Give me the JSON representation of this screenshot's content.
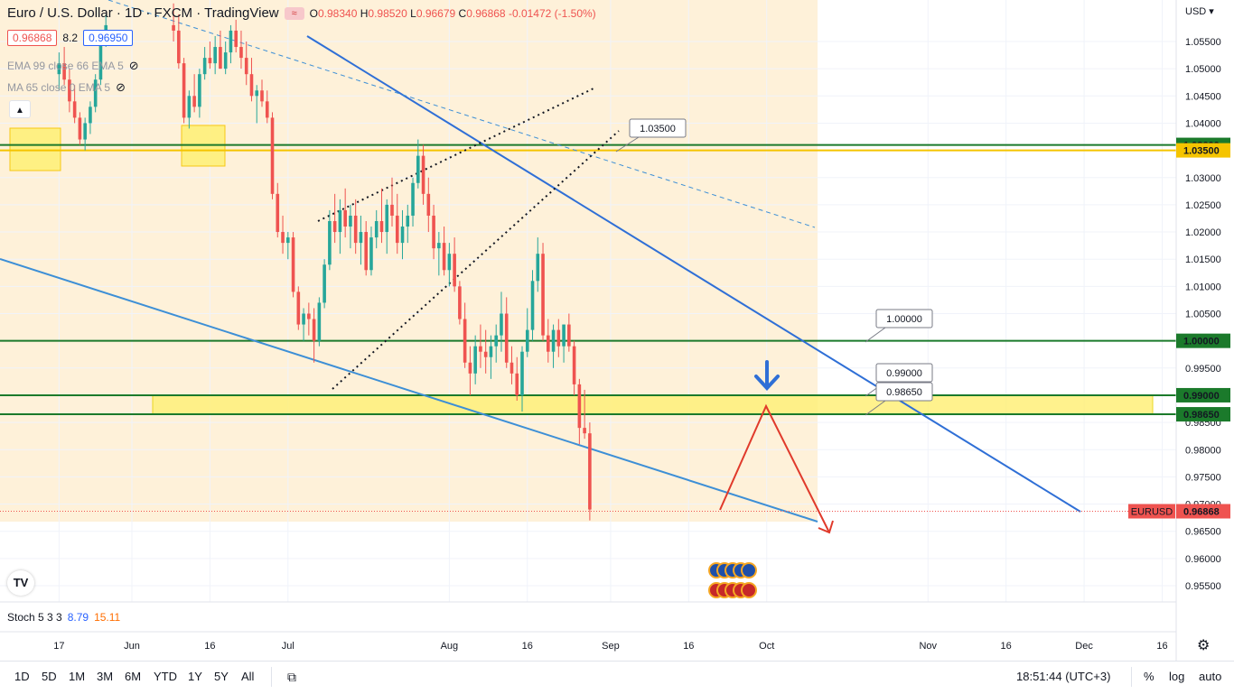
{
  "header": {
    "symbol_title": "Euro / U.S. Dollar · 1D · FXCM · TradingView",
    "ohlc": {
      "o_label": "O",
      "o": "0.98340",
      "h_label": "H",
      "h": "0.98520",
      "l_label": "L",
      "l": "0.96679",
      "c_label": "C",
      "c": "0.96868",
      "change": "-0.01472 (-1.50%)"
    },
    "bid": "0.96868",
    "spread": "8.2",
    "ask": "0.96950",
    "indicator1": "EMA 99 close 66 EMA 5",
    "indicator2": "MA 65 close 0 EMA 5",
    "collapse_icon": "chevron-up-icon",
    "eye_icon": "eye-off-icon"
  },
  "price_axis": {
    "currency": "USD",
    "ticks": [
      "1.05500",
      "1.05000",
      "1.04500",
      "1.04000",
      "1.03500",
      "1.03000",
      "1.02500",
      "1.02000",
      "1.01500",
      "1.01000",
      "1.00500",
      "1.00000",
      "0.99500",
      "0.99000",
      "0.98500",
      "0.98000",
      "0.97500",
      "0.97000",
      "0.96500",
      "0.96000",
      "0.95500"
    ],
    "tick_values": [
      1.055,
      1.05,
      1.045,
      1.04,
      1.035,
      1.03,
      1.025,
      1.02,
      1.015,
      1.01,
      1.005,
      1.0,
      0.995,
      0.99,
      0.985,
      0.98,
      0.975,
      0.97,
      0.965,
      0.96,
      0.955
    ],
    "badges": [
      {
        "label": "1.03600",
        "value": 1.036,
        "color": "#1b7a2b"
      },
      {
        "label": "1.03500",
        "value": 1.035,
        "color": "#f5c400"
      },
      {
        "label": "1.00000",
        "value": 1.0,
        "color": "#1b7a2b"
      },
      {
        "label": "0.99000",
        "value": 0.99,
        "color": "#1b7a2b"
      },
      {
        "label": "0.98650",
        "value": 0.9865,
        "color": "#1b7a2b"
      }
    ],
    "last_price_tag": "EURUSD",
    "last_price": "0.96868",
    "last_price_value": 0.96868
  },
  "time_axis": {
    "labels": [
      "17",
      "Jun",
      "16",
      "Jul",
      "Aug",
      "16",
      "Sep",
      "16",
      "Oct",
      "Nov",
      "16",
      "Dec",
      "16"
    ],
    "label_days": [
      -14,
      0,
      15,
      30,
      61,
      76,
      92,
      107,
      122,
      153,
      168,
      183,
      198
    ],
    "settings_icon": "gear-icon"
  },
  "chart_data": {
    "type": "candlestick",
    "title": "Euro / U.S. Dollar · 1D · FXCM",
    "x_unit": "days since Jun 1",
    "candles_note": "daily OHLC, approximate",
    "candles": [
      [
        -14,
        1.049,
        1.053,
        1.046,
        1.051
      ],
      [
        -13,
        1.051,
        1.054,
        1.047,
        1.048
      ],
      [
        -12,
        1.048,
        1.05,
        1.042,
        1.044
      ],
      [
        -11,
        1.044,
        1.047,
        1.04,
        1.041
      ],
      [
        -10,
        1.041,
        1.042,
        1.036,
        1.037
      ],
      [
        -9,
        1.037,
        1.041,
        1.035,
        1.04
      ],
      [
        -8,
        1.04,
        1.044,
        1.038,
        1.043
      ],
      [
        -7,
        1.043,
        1.049,
        1.042,
        1.048
      ],
      [
        -6,
        1.048,
        1.057,
        1.047,
        1.056
      ],
      [
        -5,
        1.056,
        1.06,
        1.054,
        1.058
      ],
      [
        8,
        1.058,
        1.062,
        1.055,
        1.057
      ],
      [
        9,
        1.057,
        1.06,
        1.05,
        1.051
      ],
      [
        10,
        1.051,
        1.052,
        1.04,
        1.041
      ],
      [
        11,
        1.041,
        1.046,
        1.039,
        1.045
      ],
      [
        12,
        1.045,
        1.049,
        1.042,
        1.043
      ],
      [
        13,
        1.043,
        1.05,
        1.041,
        1.049
      ],
      [
        14,
        1.049,
        1.054,
        1.048,
        1.052
      ],
      [
        15,
        1.052,
        1.055,
        1.05,
        1.051
      ],
      [
        16,
        1.051,
        1.056,
        1.049,
        1.054
      ],
      [
        17,
        1.054,
        1.057,
        1.05,
        1.05
      ],
      [
        18,
        1.05,
        1.055,
        1.049,
        1.053
      ],
      [
        19,
        1.053,
        1.058,
        1.051,
        1.057
      ],
      [
        20,
        1.057,
        1.059,
        1.053,
        1.054
      ],
      [
        21,
        1.054,
        1.057,
        1.05,
        1.052
      ],
      [
        22,
        1.052,
        1.055,
        1.047,
        1.049
      ],
      [
        23,
        1.049,
        1.052,
        1.044,
        1.045
      ],
      [
        24,
        1.045,
        1.047,
        1.04,
        1.046
      ],
      [
        25,
        1.046,
        1.048,
        1.043,
        1.044
      ],
      [
        26,
        1.044,
        1.046,
        1.04,
        1.041
      ],
      [
        27,
        1.041,
        1.042,
        1.026,
        1.027
      ],
      [
        28,
        1.027,
        1.029,
        1.019,
        1.02
      ],
      [
        29,
        1.02,
        1.023,
        1.016,
        1.018
      ],
      [
        30,
        1.018,
        1.02,
        1.015,
        1.019
      ],
      [
        31,
        1.019,
        1.02,
        1.008,
        1.009
      ],
      [
        32,
        1.009,
        1.01,
        1.002,
        1.003
      ],
      [
        33,
        1.003,
        1.006,
        1.0,
        1.005
      ],
      [
        34,
        1.005,
        1.007,
        1.001,
        1.004
      ],
      [
        35,
        1.004,
        1.006,
        0.996,
        1.0
      ],
      [
        36,
        1.0,
        1.008,
        0.999,
        1.007
      ],
      [
        37,
        1.007,
        1.015,
        1.006,
        1.014
      ],
      [
        38,
        1.014,
        1.024,
        1.013,
        1.022
      ],
      [
        39,
        1.022,
        1.027,
        1.018,
        1.02
      ],
      [
        40,
        1.02,
        1.026,
        1.016,
        1.024
      ],
      [
        41,
        1.024,
        1.028,
        1.019,
        1.021
      ],
      [
        42,
        1.021,
        1.025,
        1.017,
        1.023
      ],
      [
        43,
        1.023,
        1.026,
        1.016,
        1.018
      ],
      [
        44,
        1.018,
        1.023,
        1.014,
        1.02
      ],
      [
        45,
        1.02,
        1.022,
        1.012,
        1.013
      ],
      [
        46,
        1.013,
        1.021,
        1.012,
        1.019
      ],
      [
        47,
        1.019,
        1.024,
        1.017,
        1.022
      ],
      [
        48,
        1.022,
        1.028,
        1.018,
        1.02
      ],
      [
        49,
        1.02,
        1.026,
        1.016,
        1.025
      ],
      [
        50,
        1.025,
        1.03,
        1.021,
        1.023
      ],
      [
        51,
        1.023,
        1.027,
        1.016,
        1.018
      ],
      [
        52,
        1.018,
        1.024,
        1.015,
        1.021
      ],
      [
        53,
        1.021,
        1.025,
        1.018,
        1.023
      ],
      [
        54,
        1.023,
        1.03,
        1.021,
        1.029
      ],
      [
        55,
        1.029,
        1.037,
        1.028,
        1.034
      ],
      [
        56,
        1.034,
        1.036,
        1.025,
        1.027
      ],
      [
        57,
        1.027,
        1.03,
        1.02,
        1.023
      ],
      [
        58,
        1.023,
        1.025,
        1.015,
        1.017
      ],
      [
        59,
        1.017,
        1.02,
        1.012,
        1.018
      ],
      [
        60,
        1.018,
        1.021,
        1.012,
        1.013
      ],
      [
        61,
        1.013,
        1.018,
        1.01,
        1.016
      ],
      [
        62,
        1.016,
        1.019,
        1.009,
        1.01
      ],
      [
        63,
        1.01,
        1.011,
        1.003,
        1.004
      ],
      [
        64,
        1.004,
        1.007,
        0.995,
        0.996
      ],
      [
        65,
        0.996,
        0.999,
        0.99,
        0.994
      ],
      [
        66,
        0.994,
        1.001,
        0.992,
        0.999
      ],
      [
        67,
        0.999,
        1.003,
        0.995,
        0.998
      ],
      [
        68,
        0.998,
        1.002,
        0.994,
        0.997
      ],
      [
        69,
        0.997,
        1.001,
        0.993,
        0.999
      ],
      [
        70,
        0.999,
        1.003,
        0.996,
        1.001
      ],
      [
        71,
        1.001,
        1.009,
        0.998,
        1.005
      ],
      [
        72,
        1.005,
        1.008,
        0.995,
        0.996
      ],
      [
        73,
        0.996,
        0.999,
        0.992,
        0.994
      ],
      [
        74,
        0.994,
        0.997,
        0.989,
        0.99
      ],
      [
        75,
        0.99,
        0.999,
        0.987,
        0.998
      ],
      [
        76,
        0.998,
        1.006,
        0.997,
        1.002
      ],
      [
        77,
        1.002,
        1.013,
        1.0,
        1.011
      ],
      [
        78,
        1.011,
        1.019,
        1.009,
        1.016
      ],
      [
        79,
        1.016,
        1.018,
        1.0,
        1.001
      ],
      [
        80,
        1.001,
        1.004,
        0.996,
        0.998
      ],
      [
        81,
        0.998,
        1.003,
        0.995,
        1.002
      ],
      [
        82,
        1.002,
        1.004,
        0.997,
        0.999
      ],
      [
        83,
        0.999,
        1.003,
        0.996,
        1.003
      ],
      [
        84,
        1.003,
        1.005,
        0.998,
        0.999
      ],
      [
        85,
        0.999,
        1.0,
        0.99,
        0.992
      ],
      [
        86,
        0.992,
        0.993,
        0.981,
        0.984
      ],
      [
        87,
        0.984,
        0.991,
        0.982,
        0.983
      ],
      [
        88,
        0.983,
        0.985,
        0.967,
        0.969
      ]
    ],
    "horizontal_levels": [
      {
        "value": 1.036,
        "color": "#1b7a2b"
      },
      {
        "value": 1.035,
        "color": "#f5c400"
      },
      {
        "value": 1.0,
        "color": "#1b7a2b"
      },
      {
        "value": 0.99,
        "color": "#1b7a2b"
      },
      {
        "value": 0.9865,
        "color": "#1b7a2b"
      }
    ],
    "callouts": [
      "1.03500",
      "1.00000",
      "0.99000",
      "0.98650"
    ],
    "yellow_zone": {
      "from": 0.9865,
      "to": 0.99
    },
    "stochastic": {
      "label": "Stoch 5 3 3",
      "k": "8.79",
      "d": "15.11",
      "k_color": "#2962ff",
      "d_color": "#ff6d00"
    },
    "colors": {
      "up": "#26a69a",
      "down": "#ef5350",
      "trend_blue": "#2f6fd6",
      "forecast_red": "#e03a2b",
      "zone": "#fff07a",
      "bg_zone": "#fdeccc"
    }
  },
  "bottom_bar": {
    "timeframes": [
      "1D",
      "5D",
      "1M",
      "3M",
      "6M",
      "YTD",
      "1Y",
      "5Y",
      "All"
    ],
    "compare_icon": "calendar-range-icon",
    "clock": "18:51:44 (UTC+3)",
    "percent": "%",
    "log": "log",
    "auto": "auto"
  },
  "logo": "tradingview-logo-icon"
}
